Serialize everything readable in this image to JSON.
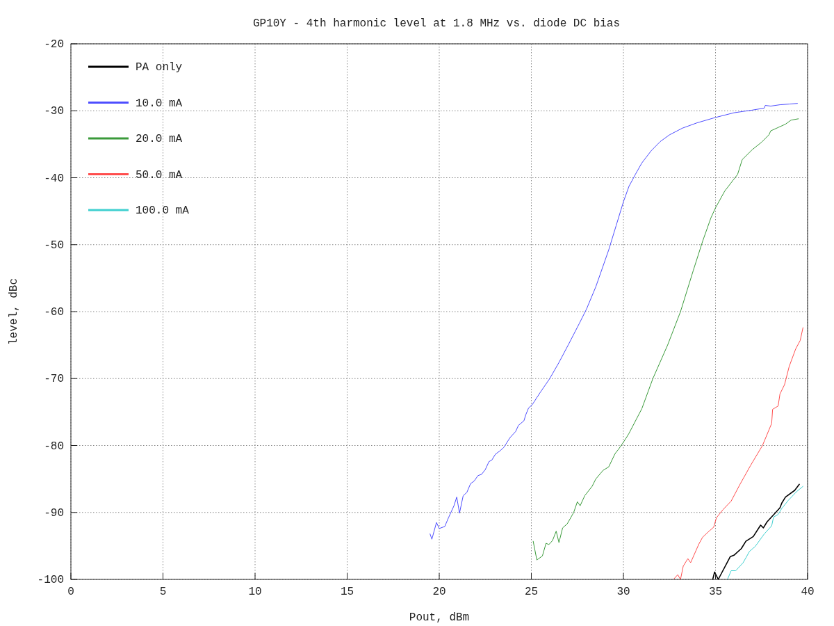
{
  "chart_data": {
    "type": "line",
    "title": "GP10Y - 4th harmonic level at 1.8 MHz vs. diode DC bias",
    "xlabel": "Pout, dBm",
    "ylabel": "level, dBc",
    "xlim": [
      0,
      40
    ],
    "xticks": [
      0,
      5,
      10,
      15,
      20,
      25,
      30,
      35,
      40
    ],
    "ylim": [
      -100,
      -20
    ],
    "yticks": [
      -100,
      -90,
      -80,
      -70,
      -60,
      -50,
      -40,
      -30,
      -20
    ],
    "grid": true,
    "legend": "top left",
    "marker": "none",
    "line_style": "solid",
    "series": [
      {
        "name": "PA only",
        "color": "#000000",
        "x": [
          34.85,
          34.95,
          35.15,
          35.8,
          36.0,
          36.4,
          36.65,
          37.05,
          37.45,
          37.6,
          37.8,
          38.2,
          38.5,
          38.6,
          38.8,
          39.3,
          39.55
        ],
        "values": [
          -100,
          -98.9,
          -100,
          -96.6,
          -96.4,
          -95.4,
          -94.3,
          -93.6,
          -91.9,
          -92.3,
          -91.4,
          -90.2,
          -89.3,
          -88.6,
          -87.7,
          -86.7,
          -85.8
        ]
      },
      {
        "name": "10.0 mA",
        "color": "#4d4dff",
        "x": [
          19.5,
          19.6,
          19.85,
          20.0,
          20.3,
          20.5,
          20.8,
          20.95,
          21.1,
          21.3,
          21.5,
          21.7,
          21.9,
          22.1,
          22.3,
          22.5,
          22.7,
          22.85,
          23.05,
          23.3,
          23.5,
          23.85,
          24.15,
          24.3,
          24.6,
          24.7,
          24.85,
          25.05,
          25.5,
          26.0,
          26.5,
          27.0,
          27.6,
          28.0,
          28.5,
          29.2,
          29.6,
          30.0,
          30.3,
          30.65,
          31.0,
          31.5,
          32.0,
          32.5,
          33.2,
          34.0,
          35.0,
          36.0,
          37.0,
          37.65,
          37.7,
          38.0,
          38.5,
          39.0,
          39.45
        ],
        "values": [
          -93.2,
          -94,
          -91.5,
          -92.4,
          -92.1,
          -90.8,
          -89,
          -87.7,
          -90.1,
          -87.5,
          -87,
          -85.7,
          -85.3,
          -84.5,
          -84.3,
          -83.6,
          -82.4,
          -82.2,
          -81.3,
          -80.8,
          -80.3,
          -78.8,
          -77.9,
          -77,
          -76.3,
          -75.4,
          -74.4,
          -73.9,
          -72.0,
          -70.0,
          -67.6,
          -65.0,
          -61.8,
          -59.6,
          -56.3,
          -50.8,
          -47.2,
          -43.6,
          -41.3,
          -39.5,
          -37.8,
          -36.0,
          -34.6,
          -33.6,
          -32.6,
          -31.8,
          -31.0,
          -30.3,
          -29.9,
          -29.6,
          -29.2,
          -29.3,
          -29.1,
          -29.0,
          -28.9
        ]
      },
      {
        "name": "20.0 mA",
        "color": "#3a9a3a",
        "x": [
          25.1,
          25.3,
          25.6,
          25.8,
          25.95,
          26.15,
          26.35,
          26.5,
          26.7,
          26.95,
          27.3,
          27.5,
          27.65,
          27.9,
          28.3,
          28.5,
          28.9,
          29.2,
          29.55,
          29.75,
          30.1,
          30.3,
          31.0,
          31.6,
          32.4,
          33.1,
          33.8,
          34.3,
          34.75,
          35.0,
          35.5,
          36.2,
          36.45,
          37.0,
          37.5,
          37.9,
          38.0,
          38.4,
          38.8,
          39.1,
          39.5
        ],
        "values": [
          -94.3,
          -97.1,
          -96.5,
          -94.6,
          -94.8,
          -94.2,
          -92.8,
          -94.5,
          -92.3,
          -91.7,
          -90,
          -88.4,
          -89,
          -87.5,
          -86.1,
          -85.0,
          -83.7,
          -83.2,
          -81.2,
          -80.5,
          -79.1,
          -78.2,
          -74.5,
          -70.0,
          -65.0,
          -60.0,
          -53.8,
          -49.5,
          -46.0,
          -44.5,
          -42.0,
          -39.5,
          -37.3,
          -35.8,
          -34.7,
          -33.6,
          -33.0,
          -32.5,
          -32.0,
          -31.4,
          -31.2
        ]
      },
      {
        "name": "50.0 mA",
        "color": "#ff4d4d",
        "x": [
          32.75,
          32.95,
          33.1,
          33.25,
          33.5,
          33.65,
          34.1,
          34.3,
          34.65,
          34.9,
          35.05,
          35.4,
          35.85,
          36.35,
          36.9,
          37.55,
          38.05,
          38.1,
          38.4,
          38.5,
          38.75,
          39.0,
          39.35,
          39.6,
          39.75
        ],
        "values": [
          -99.9,
          -99.3,
          -100,
          -98,
          -96.9,
          -97.5,
          -94.7,
          -93.7,
          -92.8,
          -92.2,
          -90.8,
          -89.6,
          -88.3,
          -85.7,
          -83.0,
          -80.0,
          -76.7,
          -74.6,
          -74.1,
          -72.3,
          -70.9,
          -68.2,
          -65.6,
          -64.3,
          -62.4
        ]
      },
      {
        "name": "100.0 mA",
        "color": "#40d0d0",
        "x": [
          35.65,
          35.85,
          36.1,
          36.5,
          36.85,
          37.15,
          37.65,
          38.05,
          38.15,
          38.4,
          38.6,
          38.95,
          39.4,
          39.75
        ],
        "values": [
          -100,
          -98.7,
          -98.7,
          -97.5,
          -95.8,
          -95.1,
          -93.2,
          -92.0,
          -90.7,
          -90.3,
          -89.4,
          -88.2,
          -86.9,
          -86.1
        ]
      }
    ]
  }
}
